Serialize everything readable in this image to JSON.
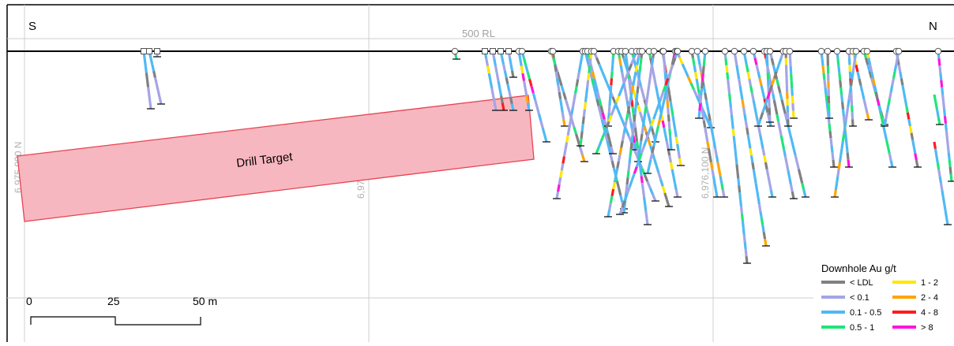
{
  "section": {
    "south_label": "S",
    "north_label": "N",
    "rl_label": "500 RL",
    "northing_labels": [
      "6,975,900 N",
      "6,976,000 N",
      "6,976,100 N"
    ]
  },
  "target": {
    "label": "Drill Target",
    "fill": "#f7b7c0",
    "stroke": "#e8434f"
  },
  "scale_bar": {
    "ticks": [
      "0",
      "25",
      "50 m"
    ]
  },
  "legend": {
    "title": "Downhole Au g/t",
    "items": [
      {
        "label": "< LDL",
        "color": "#808080"
      },
      {
        "label": "1 - 2",
        "color": "#ffe600"
      },
      {
        "label": "< 0.1",
        "color": "#a4a4e6"
      },
      {
        "label": "2 - 4",
        "color": "#ffa500"
      },
      {
        "label": "0.1 - 0.5",
        "color": "#4fb9f5"
      },
      {
        "label": "4 - 8",
        "color": "#ff1b1b"
      },
      {
        "label": "0.5 - 1",
        "color": "#1ee678"
      },
      {
        "label": "> 8",
        "color": "#ff14dc"
      }
    ]
  },
  "colors": {
    "topo": "#000000",
    "grid": "#cfcfcf",
    "frame": "#000000"
  }
}
